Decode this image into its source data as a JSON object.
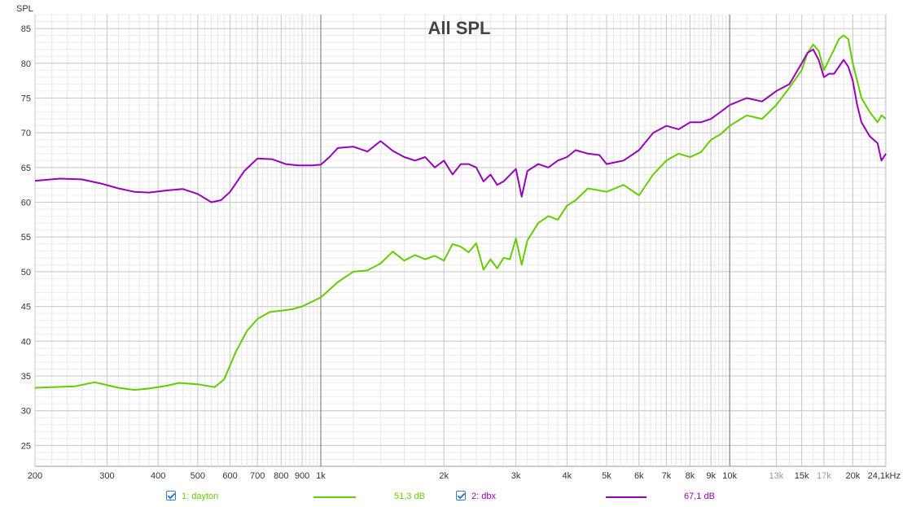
{
  "chart_data": {
    "type": "line",
    "title": "All SPL",
    "ylabel": "SPL",
    "x_scale": "log",
    "xlim": [
      200,
      24100
    ],
    "ylim": [
      22,
      87
    ],
    "grid": true,
    "y_ticks": [
      25,
      30,
      35,
      40,
      45,
      50,
      55,
      60,
      65,
      70,
      75,
      80,
      85
    ],
    "x_ticks": [
      {
        "v": 200,
        "l": "200",
        "major": true
      },
      {
        "v": 300,
        "l": "300",
        "major": true
      },
      {
        "v": 400,
        "l": "400",
        "major": true
      },
      {
        "v": 500,
        "l": "500",
        "major": true
      },
      {
        "v": 600,
        "l": "600",
        "major": true
      },
      {
        "v": 700,
        "l": "700",
        "major": true
      },
      {
        "v": 800,
        "l": "800",
        "major": true
      },
      {
        "v": 900,
        "l": "900",
        "major": true
      },
      {
        "v": 1000,
        "l": "1k",
        "major": true
      },
      {
        "v": 2000,
        "l": "2k",
        "major": true
      },
      {
        "v": 3000,
        "l": "3k",
        "major": true
      },
      {
        "v": 4000,
        "l": "4k",
        "major": true
      },
      {
        "v": 5000,
        "l": "5k",
        "major": true
      },
      {
        "v": 6000,
        "l": "6k",
        "major": true
      },
      {
        "v": 7000,
        "l": "7k",
        "major": true
      },
      {
        "v": 8000,
        "l": "8k",
        "major": true
      },
      {
        "v": 9000,
        "l": "9k",
        "major": true
      },
      {
        "v": 10000,
        "l": "10k",
        "major": true
      },
      {
        "v": 13000,
        "l": "13k",
        "major": false
      },
      {
        "v": 15000,
        "l": "15k",
        "major": true
      },
      {
        "v": 17000,
        "l": "17k",
        "major": false
      },
      {
        "v": 20000,
        "l": "20k",
        "major": true
      },
      {
        "v": 24100,
        "l": "24,1kHz",
        "major": true
      }
    ],
    "series": [
      {
        "name": "1: dayton",
        "color": "#66cc00",
        "value_label": "51,3 dB",
        "x": [
          200,
          250,
          280,
          320,
          350,
          380,
          420,
          450,
          500,
          550,
          580,
          620,
          660,
          700,
          750,
          800,
          850,
          900,
          1000,
          1100,
          1200,
          1300,
          1400,
          1500,
          1600,
          1700,
          1800,
          1900,
          2000,
          2100,
          2200,
          2300,
          2400,
          2500,
          2600,
          2700,
          2800,
          2900,
          3000,
          3100,
          3200,
          3400,
          3600,
          3800,
          4000,
          4200,
          4500,
          5000,
          5500,
          6000,
          6500,
          7000,
          7500,
          8000,
          8500,
          9000,
          9500,
          10000,
          11000,
          12000,
          13000,
          14000,
          15000,
          15500,
          16000,
          16500,
          17000,
          18000,
          18500,
          19000,
          19500,
          20000,
          20500,
          21000,
          22000,
          23000,
          23500,
          24100
        ],
        "y": [
          33.3,
          33.5,
          34.1,
          33.3,
          33.0,
          33.2,
          33.6,
          34.0,
          33.8,
          33.4,
          34.5,
          38.5,
          41.5,
          43.2,
          44.2,
          44.4,
          44.6,
          45.0,
          46.3,
          48.5,
          50.0,
          50.2,
          51.2,
          52.9,
          51.6,
          52.4,
          51.8,
          52.3,
          51.6,
          54.0,
          53.6,
          52.8,
          54.1,
          50.3,
          51.8,
          50.5,
          52.0,
          51.8,
          54.8,
          51.0,
          54.5,
          57.0,
          58.0,
          57.5,
          59.5,
          60.3,
          62.0,
          61.5,
          62.5,
          61.0,
          64.0,
          66.0,
          67.0,
          66.5,
          67.2,
          69.0,
          69.8,
          71.0,
          72.5,
          72.0,
          74.0,
          76.5,
          79.0,
          81.5,
          82.7,
          81.8,
          79.0,
          82.0,
          83.5,
          84.0,
          83.5,
          80.0,
          77.5,
          75.0,
          73.0,
          71.5,
          72.5,
          72.0
        ]
      },
      {
        "name": "2: dbx",
        "color": "#9900bb",
        "value_label": "67,1 dB",
        "x": [
          200,
          230,
          260,
          290,
          320,
          350,
          380,
          420,
          460,
          500,
          540,
          570,
          600,
          650,
          700,
          760,
          820,
          880,
          950,
          1000,
          1050,
          1100,
          1200,
          1300,
          1400,
          1500,
          1600,
          1700,
          1800,
          1900,
          2000,
          2100,
          2200,
          2300,
          2400,
          2500,
          2600,
          2700,
          2800,
          3000,
          3100,
          3200,
          3400,
          3600,
          3800,
          4000,
          4200,
          4500,
          4800,
          5000,
          5500,
          6000,
          6500,
          7000,
          7500,
          8000,
          8500,
          9000,
          9500,
          10000,
          11000,
          12000,
          13000,
          14000,
          15000,
          15500,
          16000,
          16500,
          17000,
          17500,
          18000,
          18500,
          19000,
          19500,
          20000,
          20500,
          21000,
          22000,
          23000,
          23500,
          24100
        ],
        "y": [
          63.1,
          63.4,
          63.3,
          62.7,
          62.0,
          61.5,
          61.4,
          61.7,
          61.9,
          61.2,
          60.0,
          60.3,
          61.5,
          64.5,
          66.3,
          66.2,
          65.5,
          65.3,
          65.3,
          65.4,
          66.5,
          67.8,
          68.0,
          67.3,
          68.8,
          67.4,
          66.5,
          66.0,
          66.5,
          65.0,
          66.0,
          64.0,
          65.5,
          65.5,
          65.0,
          63.0,
          64.0,
          62.5,
          63.0,
          64.8,
          60.8,
          64.5,
          65.5,
          65.0,
          66.0,
          66.5,
          67.5,
          67.0,
          66.8,
          65.5,
          66.0,
          67.5,
          70.0,
          71.0,
          70.5,
          71.5,
          71.5,
          72.0,
          73.0,
          74.0,
          75.0,
          74.5,
          76.0,
          77.0,
          80.0,
          81.5,
          82.0,
          80.5,
          78.0,
          78.5,
          78.5,
          79.5,
          80.5,
          79.5,
          77.5,
          74.0,
          71.5,
          69.5,
          68.5,
          66.0,
          67.0
        ]
      }
    ]
  },
  "legend": [
    {
      "label": "1: dayton",
      "value": "51,3 dB",
      "color": "#66cc00"
    },
    {
      "label": "2: dbx",
      "value": "67,1 dB",
      "color": "#9900bb"
    }
  ]
}
